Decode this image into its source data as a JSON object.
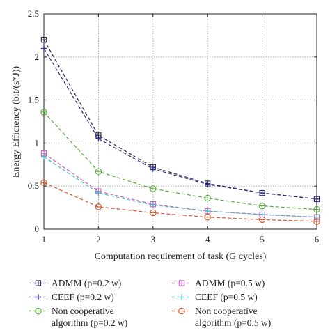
{
  "chart_data": {
    "type": "line",
    "title": "",
    "xlabel": "Computation requirement of task (G cycles)",
    "ylabel": "Energy Efficiency (bit/(s*J))",
    "x": [
      1,
      2,
      3,
      4,
      5,
      6
    ],
    "xlim": [
      1,
      6
    ],
    "ylim": [
      0,
      2.5
    ],
    "xticks": [
      "1",
      "2",
      "3",
      "4",
      "5",
      "6"
    ],
    "yticks": [
      "0",
      "0.5",
      "1",
      "1.5",
      "2",
      "2.5"
    ],
    "grid": true,
    "legend_position": "bottom",
    "series": [
      {
        "name": "ADMM (p=0.2 w)",
        "values": [
          2.2,
          1.09,
          0.72,
          0.53,
          0.42,
          0.35
        ],
        "color": "#2b2b55",
        "marker": "square"
      },
      {
        "name": "ADMM (p=0.5 w)",
        "values": [
          0.88,
          0.44,
          0.29,
          0.21,
          0.17,
          0.14
        ],
        "color": "#c85fc8",
        "marker": "square"
      },
      {
        "name": "CEEF (p=0.2 w)",
        "values": [
          2.1,
          1.05,
          0.7,
          0.52,
          0.42,
          0.35
        ],
        "color": "#2a2a8a",
        "marker": "plus"
      },
      {
        "name": "CEEF (p=0.5 w)",
        "values": [
          0.84,
          0.42,
          0.28,
          0.21,
          0.17,
          0.14
        ],
        "color": "#4fb8c8",
        "marker": "plus"
      },
      {
        "name": "Non cooperative\nalgorithm (p=0.2 w)",
        "values": [
          1.36,
          0.67,
          0.47,
          0.36,
          0.27,
          0.23
        ],
        "color": "#5aaa3a",
        "marker": "circle"
      },
      {
        "name": "Non cooperative\nalgorithm (p=0.5 w)",
        "values": [
          0.54,
          0.26,
          0.19,
          0.14,
          0.11,
          0.09
        ],
        "color": "#d9542a",
        "marker": "circle"
      }
    ]
  }
}
